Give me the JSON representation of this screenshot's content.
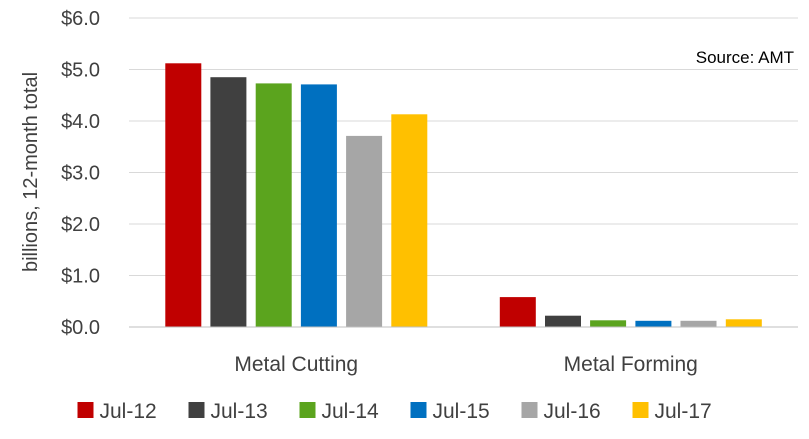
{
  "chart_data": {
    "type": "bar",
    "categories": [
      "Metal Cutting",
      "Metal Forming"
    ],
    "series": [
      {
        "name": "Jul-12",
        "color": "#c00000",
        "values": [
          5.12,
          0.58
        ]
      },
      {
        "name": "Jul-13",
        "color": "#404040",
        "values": [
          4.85,
          0.22
        ]
      },
      {
        "name": "Jul-14",
        "color": "#5ba41e",
        "values": [
          4.73,
          0.13
        ]
      },
      {
        "name": "Jul-15",
        "color": "#0070c0",
        "values": [
          4.71,
          0.12
        ]
      },
      {
        "name": "Jul-16",
        "color": "#a6a6a6",
        "values": [
          3.71,
          0.12
        ]
      },
      {
        "name": "Jul-17",
        "color": "#ffc000",
        "values": [
          4.13,
          0.15
        ]
      }
    ],
    "ylabel": "billions, 12-month total",
    "ylim": [
      0,
      6
    ],
    "yticks": [
      0,
      1,
      2,
      3,
      4,
      5,
      6
    ],
    "ytick_labels": [
      "$0.0",
      "$1.0",
      "$2.0",
      "$3.0",
      "$4.0",
      "$5.0",
      "$6.0"
    ],
    "grid": true,
    "legend_position": "bottom",
    "annotation": "Source: AMT"
  }
}
